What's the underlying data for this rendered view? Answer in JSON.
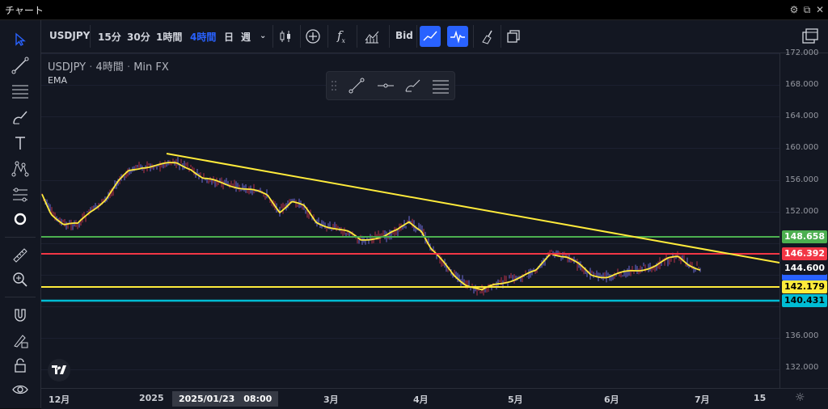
{
  "window": {
    "title": "チャート"
  },
  "toolbar": {
    "symbol": "USDJPY",
    "intervals": [
      "15分",
      "30分",
      "1時間",
      "4時間",
      "日",
      "週"
    ],
    "active_interval": "4時間",
    "bid_label": "Bid"
  },
  "legend": {
    "symbol": "USDJPY",
    "interval": "4時間",
    "exchange": "Min FX",
    "indicator": "EMA"
  },
  "colors": {
    "accent": "#2962ff",
    "green_line": "#4caf50",
    "red_line": "#f23645",
    "yellow_line": "#ffeb3b",
    "cyan_line": "#00bcd4",
    "price_blue": "#2962ff"
  },
  "price_axis": {
    "ticks": [
      "172.000",
      "168.000",
      "164.000",
      "160.000",
      "156.000",
      "152.000",
      "136.000",
      "132.000"
    ],
    "labels": [
      {
        "value": "148.658",
        "color": "#4caf50"
      },
      {
        "value": "146.392",
        "color": "#f23645"
      },
      {
        "value": "144.600",
        "color": "#131722"
      },
      {
        "value": "142.179",
        "color": "#ffeb3b"
      },
      {
        "value": "140.431",
        "color": "#00bcd4"
      }
    ]
  },
  "time_axis": {
    "ticks": [
      "12月",
      "2025",
      "3月",
      "4月",
      "5月",
      "6月",
      "7月",
      "15"
    ],
    "crosshair_date": "2025/01/23　08:00"
  },
  "icons": {
    "left": [
      "cursor-icon",
      "trendline-icon",
      "fib-icon",
      "brush-icon",
      "text-icon",
      "pattern-icon",
      "forecast-icon",
      "dot-icon",
      "ruler-icon",
      "zoom-icon",
      "magnet-icon",
      "lock-draw-icon",
      "lock-icon",
      "eye-icon"
    ],
    "top": [
      "candles-icon",
      "add-compare-icon",
      "indicators-icon",
      "templates-icon",
      "line-chart-icon",
      "heartbeat-icon",
      "clean-icon",
      "layout-icon"
    ]
  }
}
